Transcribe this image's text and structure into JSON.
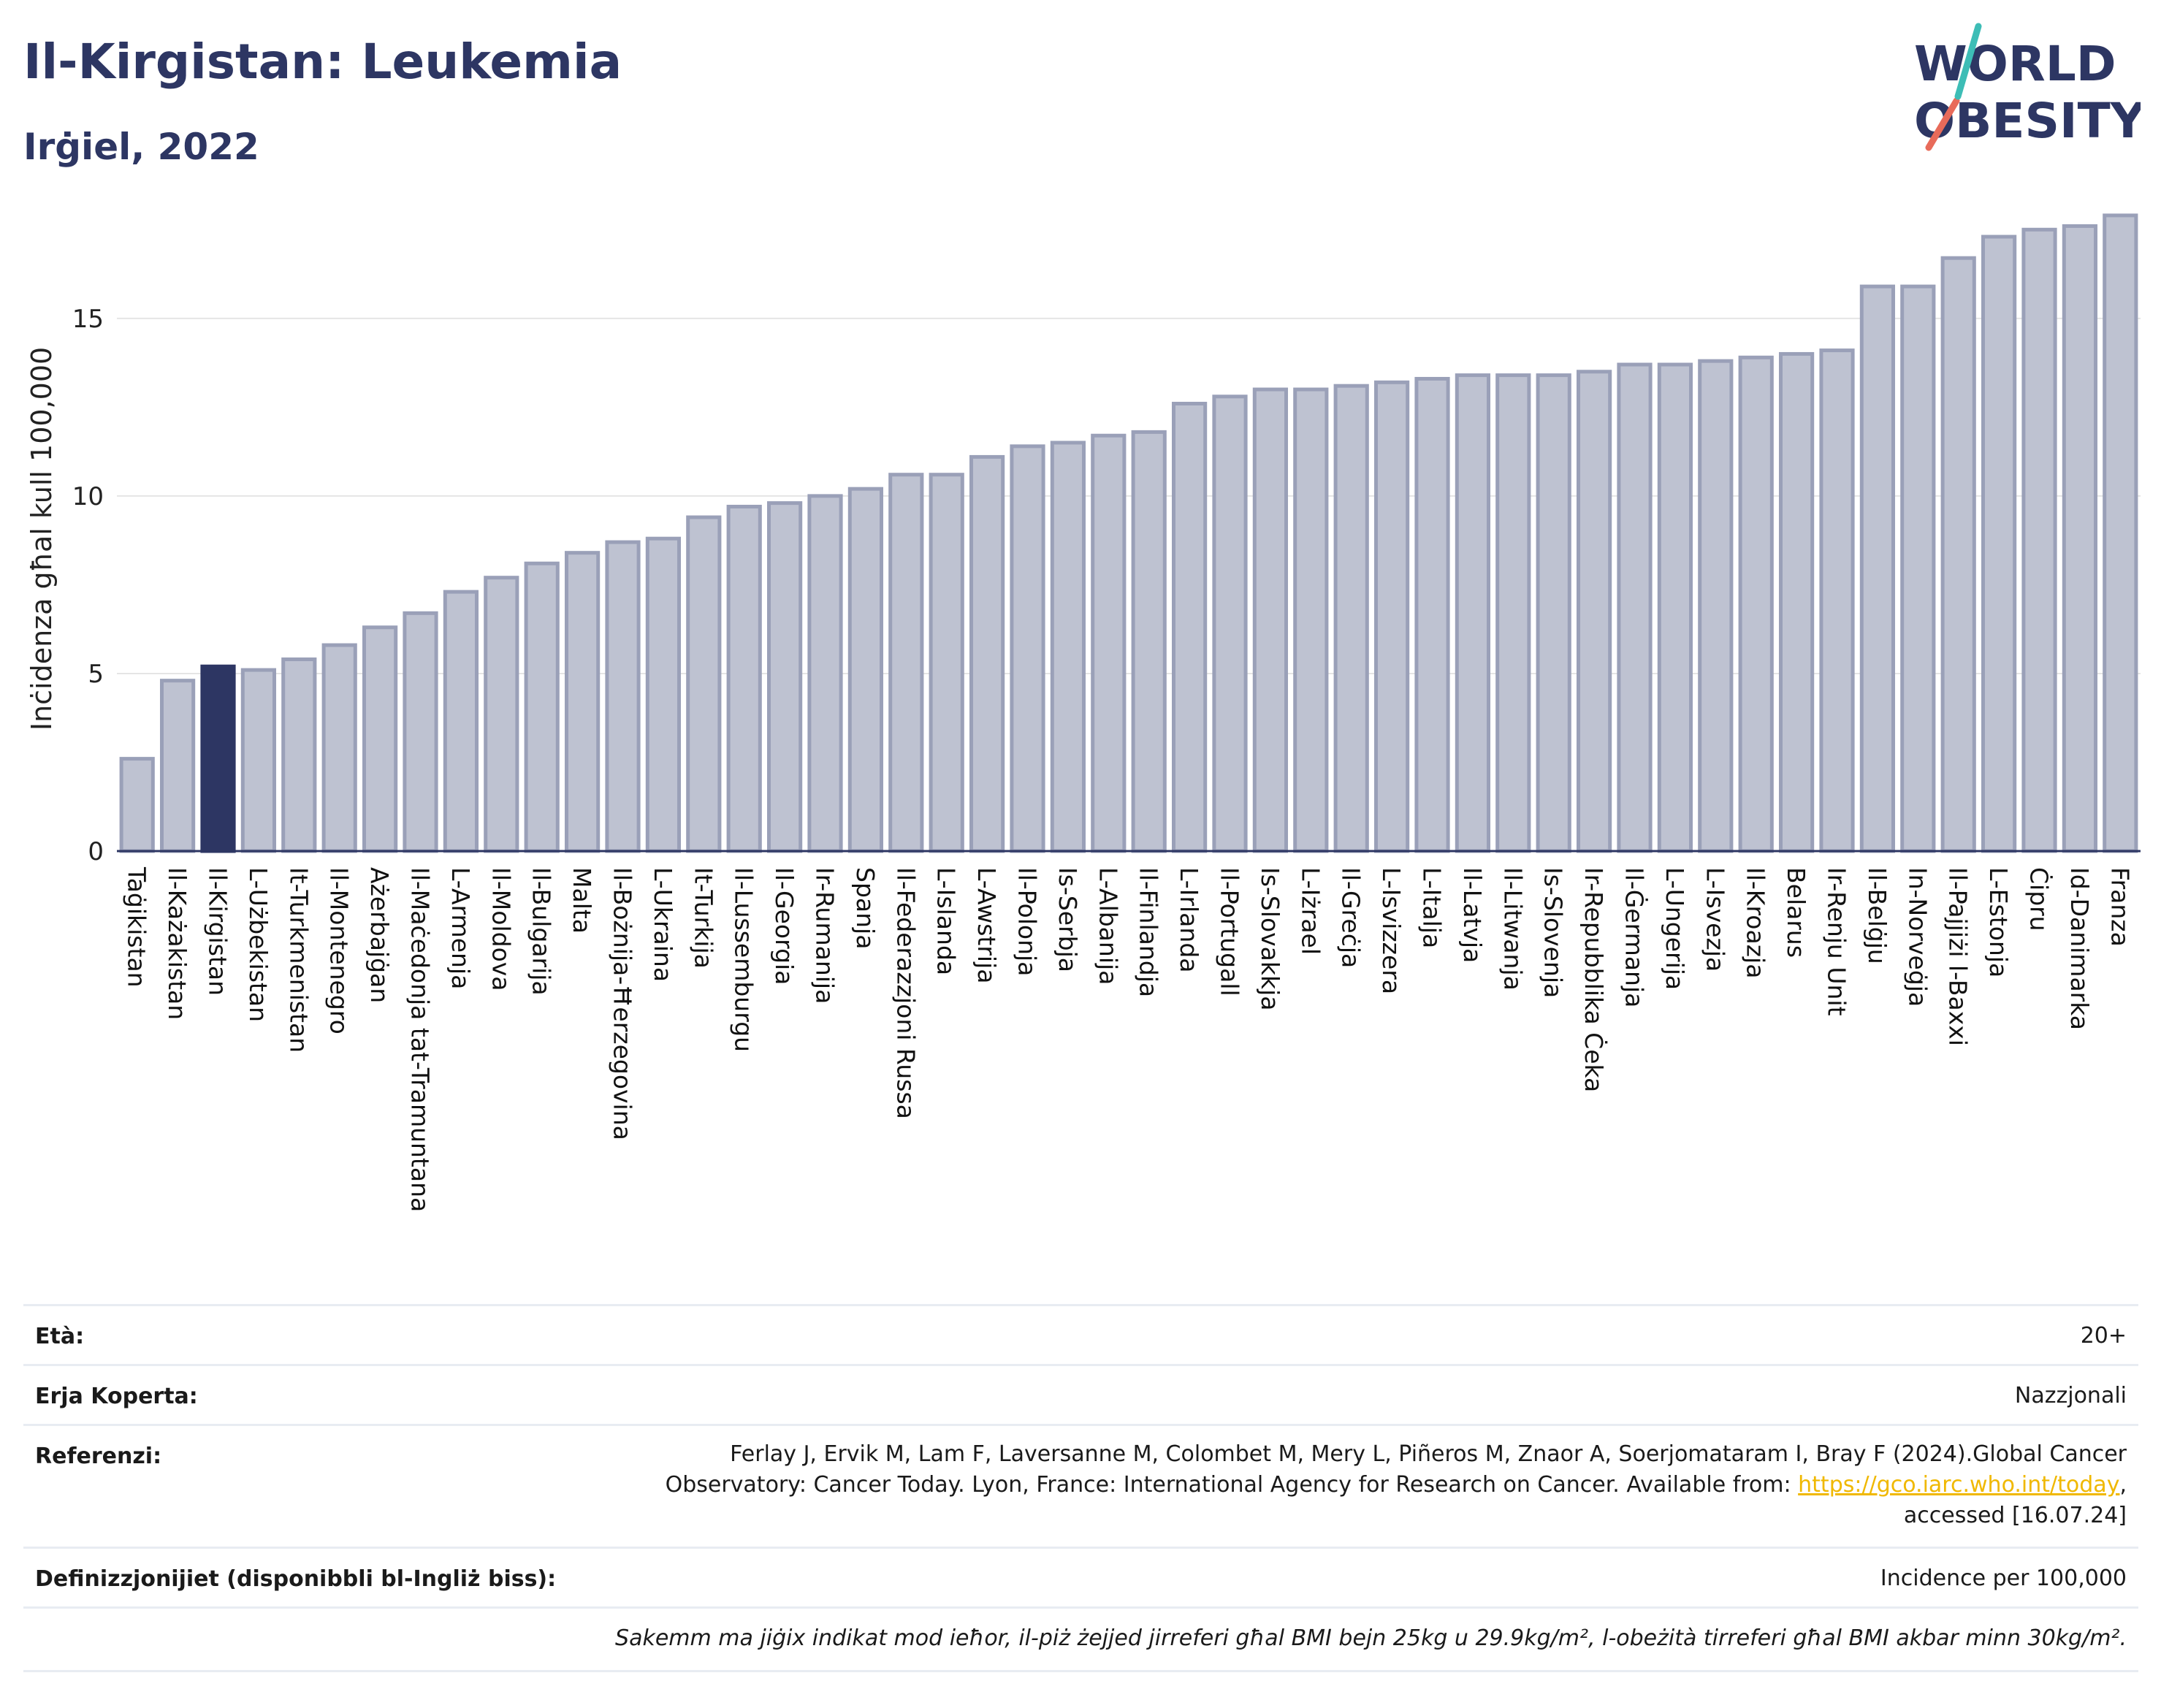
{
  "header": {
    "title": "Il-Kirgistan: Leukemia",
    "subtitle": "Irġiel, 2022"
  },
  "logo": {
    "line1": "WORLD",
    "line2": "OBESITY"
  },
  "chart_data": {
    "type": "bar",
    "ylabel": "Inċidenza għal kull 100,000",
    "ylim": [
      0,
      18
    ],
    "yticks": [
      0,
      5,
      10,
      15
    ],
    "grid": true,
    "highlight": "Il-Kirgistan",
    "colors": {
      "bar": "#bec2d1",
      "bar_edge": "#9aa0b8",
      "highlight": "#2d3663",
      "grid": "#e5e5e5"
    },
    "categories": [
      "Taġikistan",
      "Il-Każakistan",
      "Il-Kirgistan",
      "L-Użbekistan",
      "It-Turkmenistan",
      "Il-Montenegro",
      "Ażerbajġan",
      "Il-Maċedonja tat-Tramuntana",
      "L-Armenja",
      "Il-Moldova",
      "Il-Bulgarija",
      "Malta",
      "Il-Bożnija-Ħerzegovina",
      "L-Ukraina",
      "It-Turkija",
      "Il-Lussemburgu",
      "Il-Georgia",
      "Ir-Rumanija",
      "Spanja",
      "Il-Federazzjoni Russa",
      "L-Islanda",
      "L-Awstrija",
      "Il-Polonja",
      "Is-Serbja",
      "L-Albanija",
      "Il-Finlandja",
      "L-Irlanda",
      "Il-Portugall",
      "Is-Slovakkja",
      "L-Iżrael",
      "Il-Greċja",
      "L-Isvizzera",
      "L-Italja",
      "Il-Latvja",
      "Il-Litwanja",
      "Is-Slovenja",
      "Ir-Repubblika Ċeka",
      "Il-Ġermanja",
      "L-Ungerija",
      "L-Isvezja",
      "Il-Kroazja",
      "Belarus",
      "Ir-Renju Unit",
      "Il-Belġju",
      "In-Norveġja",
      "Il-Pajjiżi l-Baxxi",
      "L-Estonja",
      "Ċipru",
      "Id-Danimarka",
      "Franza"
    ],
    "values": [
      2.6,
      4.8,
      5.2,
      5.1,
      5.4,
      5.8,
      6.3,
      6.7,
      7.3,
      7.7,
      8.1,
      8.4,
      8.7,
      8.8,
      9.4,
      9.7,
      9.8,
      10.0,
      10.2,
      10.6,
      10.6,
      11.1,
      11.4,
      11.5,
      11.7,
      11.8,
      12.6,
      12.8,
      13.0,
      13.0,
      13.1,
      13.2,
      13.3,
      13.4,
      13.4,
      13.4,
      13.5,
      13.7,
      13.7,
      13.8,
      13.9,
      14.0,
      14.1,
      15.9,
      15.9,
      16.7,
      17.3,
      17.5,
      17.6,
      17.9
    ]
  },
  "info": {
    "age_label": "Età:",
    "age_value": "20+",
    "coverage_label": "Erja Koperta:",
    "coverage_value": "Nazzjonali",
    "refs_label": "Referenzi:",
    "refs_line1": "Ferlay J, Ervik M, Lam F, Laversanne M, Colombet M, Mery L, Piñeros M, Znaor A, Soerjomataram I, Bray F (2024).Global Cancer",
    "refs_line2_pre": "Observatory: Cancer Today. Lyon, France: International Agency for Research on Cancer. Available from: ",
    "refs_link": "https://gco.iarc.who.int/today",
    "refs_line2_post": ",",
    "refs_line3": "accessed [16.07.24]",
    "defs_label": "Definizzjonijiet (disponibbli bl-Ingliż biss):",
    "defs_value": "Incidence per 100,000",
    "note": "Sakemm ma jiġix indikat mod ieħor, il-piż żejjed jirreferi għal BMI bejn 25kg u 29.9kg/m², l-obeżità tirreferi għal BMI akbar minn 30kg/m²."
  }
}
